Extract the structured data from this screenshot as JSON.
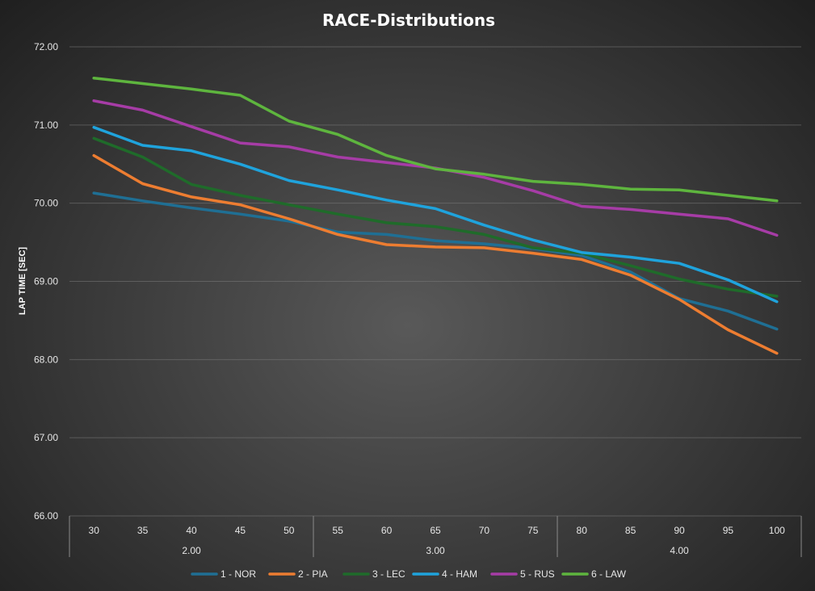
{
  "chart_data": {
    "type": "line",
    "title": "RACE-Distributions",
    "xlabel": "",
    "ylabel": "LAP TIME [SEC]",
    "ylim": [
      66.0,
      72.0
    ],
    "yticks": [
      "66.00",
      "67.00",
      "68.00",
      "69.00",
      "70.00",
      "71.00",
      "72.00"
    ],
    "ytick_values": [
      66,
      67,
      68,
      69,
      70,
      71,
      72
    ],
    "grid": true,
    "legend_position": "bottom",
    "categories": [
      "30",
      "35",
      "40",
      "45",
      "50",
      "55",
      "60",
      "65",
      "70",
      "75",
      "80",
      "85",
      "90",
      "95",
      "100"
    ],
    "groups": [
      {
        "label": "2.00",
        "count": 5
      },
      {
        "label": "3.00",
        "count": 5
      },
      {
        "label": "4.00",
        "count": 5
      }
    ],
    "series": [
      {
        "name": "1 - NOR",
        "color": "#1f6f94",
        "values": [
          70.13,
          70.03,
          69.94,
          69.86,
          69.77,
          69.63,
          69.6,
          69.52,
          69.48,
          69.42,
          69.33,
          69.12,
          68.78,
          68.62,
          68.39
        ]
      },
      {
        "name": "2 - PIA",
        "color": "#ed7d31",
        "values": [
          70.61,
          70.25,
          70.08,
          69.98,
          69.8,
          69.6,
          69.47,
          69.44,
          69.43,
          69.36,
          69.28,
          69.08,
          68.77,
          68.38,
          68.08
        ]
      },
      {
        "name": "3 - LEC",
        "color": "#1f6b2a",
        "values": [
          70.83,
          70.59,
          70.24,
          70.1,
          69.98,
          69.86,
          69.75,
          69.7,
          69.6,
          69.43,
          69.36,
          69.2,
          69.03,
          68.9,
          68.81
        ]
      },
      {
        "name": "4 - HAM",
        "color": "#1fa3dc",
        "values": [
          70.97,
          70.74,
          70.67,
          70.5,
          70.29,
          70.17,
          70.04,
          69.93,
          69.72,
          69.53,
          69.37,
          69.31,
          69.23,
          69.02,
          68.74
        ]
      },
      {
        "name": "5 - RUS",
        "color": "#a63ca6",
        "values": [
          71.31,
          71.19,
          70.98,
          70.77,
          70.72,
          70.59,
          70.52,
          70.45,
          70.33,
          70.16,
          69.96,
          69.92,
          69.86,
          69.8,
          69.59
        ]
      },
      {
        "name": "6 - LAW",
        "color": "#5eb53e",
        "values": [
          71.6,
          71.53,
          71.46,
          71.38,
          71.05,
          70.88,
          70.61,
          70.44,
          70.37,
          70.28,
          70.24,
          70.18,
          70.17,
          70.1,
          70.03
        ]
      }
    ]
  }
}
